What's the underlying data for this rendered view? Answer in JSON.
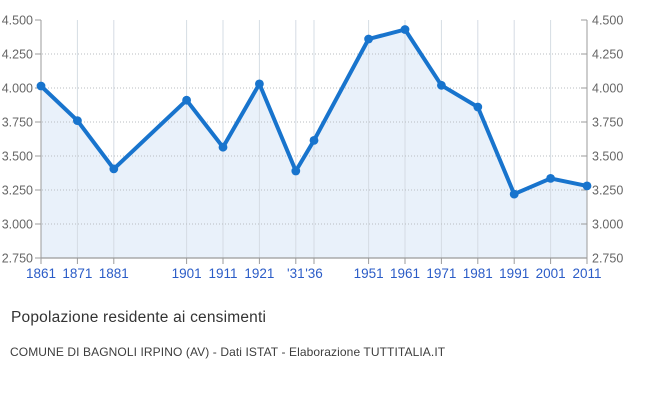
{
  "chart_data": {
    "type": "line",
    "area_fill": true,
    "title": "Popolazione residente ai censimenti",
    "subtitle": "COMUNE DI BAGNOLI IRPINO (AV) - Dati ISTAT - Elaborazione TUTTITALIA.IT",
    "series_name": "Popolazione residente",
    "x": [
      1861,
      1871,
      1881,
      1901,
      1911,
      1921,
      1931,
      1936,
      1951,
      1961,
      1971,
      1981,
      1991,
      2001,
      2011
    ],
    "x_labels": [
      "1861",
      "1871",
      "1881",
      "1901",
      "1911",
      "1921",
      "'31",
      "'36",
      "1951",
      "1961",
      "1971",
      "1981",
      "1991",
      "2001",
      "2011"
    ],
    "values": [
      4015,
      3760,
      3405,
      3910,
      3565,
      4030,
      3390,
      3615,
      4360,
      4430,
      4020,
      3860,
      3220,
      3335,
      3280
    ],
    "xlim": [
      1861,
      2011
    ],
    "ylim": [
      2750,
      4500
    ],
    "y_ticks": [
      2750,
      3000,
      3250,
      3500,
      3750,
      4000,
      4250,
      4500
    ],
    "y_tick_labels": [
      "2.750",
      "3.000",
      "3.250",
      "3.500",
      "3.750",
      "4.000",
      "4.250",
      "4.500"
    ],
    "grid": {
      "horizontal": "dotted",
      "vertical": "solid",
      "top_gridline": false
    },
    "legend": "none",
    "colors": {
      "line": "#1874CD",
      "marker": "#1874CD",
      "area": "#E9F1FA",
      "grid_vertical": "#D5DCE4",
      "grid_horizontal": "#B9BDC2",
      "axis": "#9B9B9B",
      "y_label": "#666666",
      "x_label": "#2B5CC7"
    }
  }
}
